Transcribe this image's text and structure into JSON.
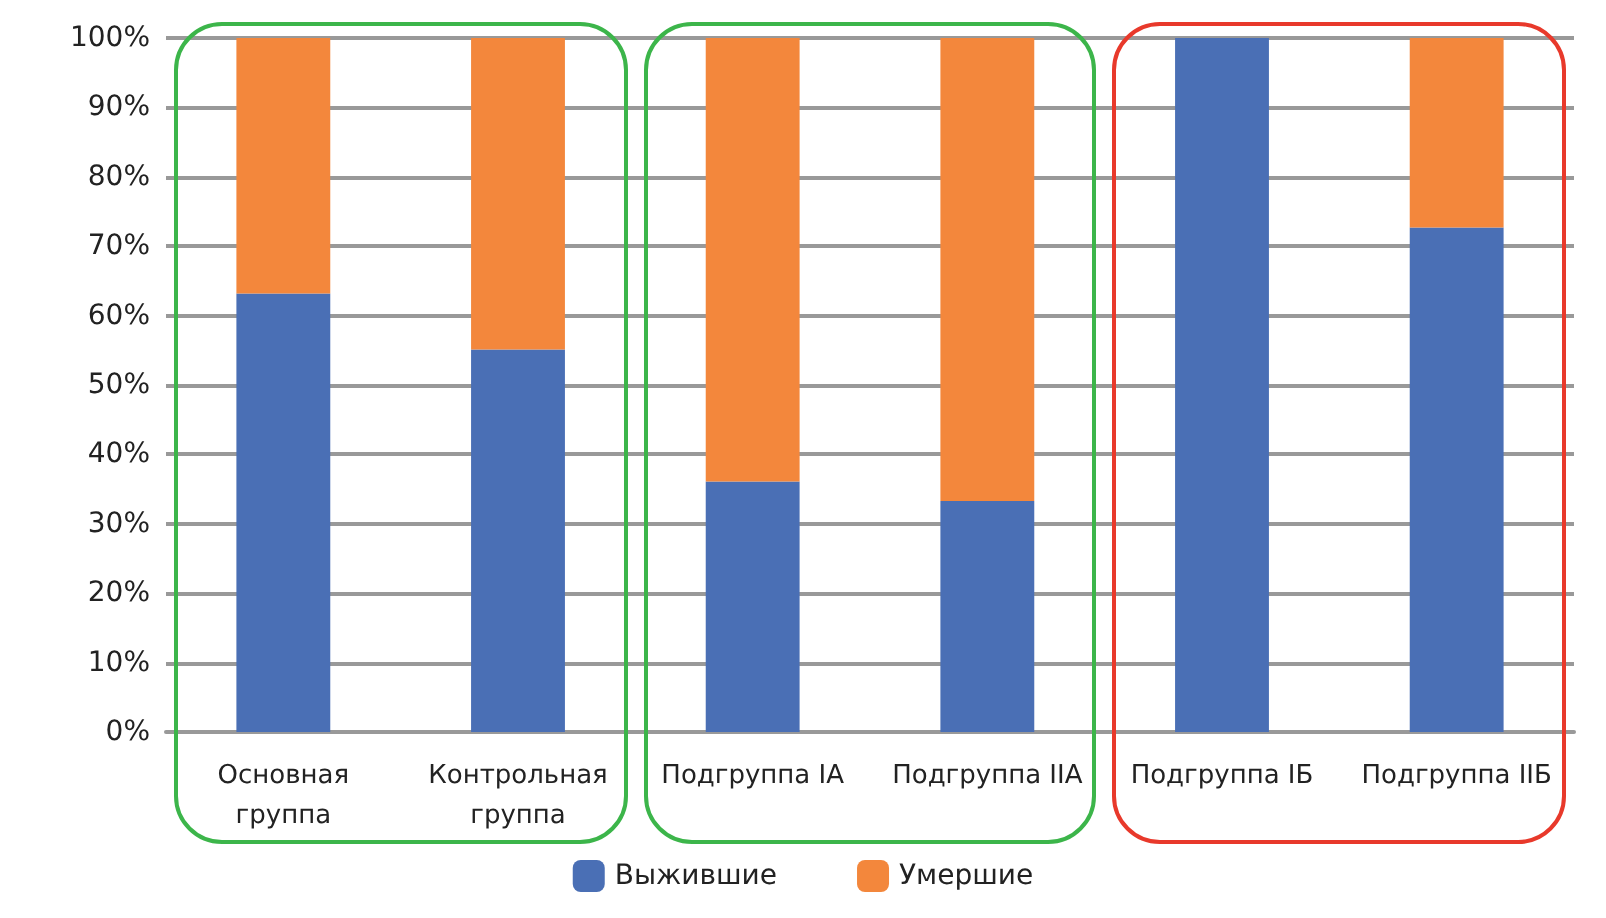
{
  "chart_data": {
    "type": "bar",
    "stacked": true,
    "categories": [
      "Основная группа",
      "Контрольная группа",
      "Подгруппа IA",
      "Подгруппа IIA",
      "Подгруппа IБ",
      "Подгруппа IIБ"
    ],
    "series": [
      {
        "name": "Выжившие",
        "color": "#4a6fb5",
        "values": [
          63.2,
          55.1,
          36.1,
          33.3,
          100,
          72.7
        ]
      },
      {
        "name": "Умершие",
        "color": "#f3873c",
        "values": [
          36.8,
          44.9,
          63.9,
          66.7,
          0,
          27.3
        ]
      }
    ],
    "ylim": [
      0,
      100
    ],
    "yticks": [
      {
        "value": 0,
        "label": "0%"
      },
      {
        "value": 10,
        "label": "10%"
      },
      {
        "value": 20,
        "label": "20%"
      },
      {
        "value": 30,
        "label": "30%"
      },
      {
        "value": 40,
        "label": "40%"
      },
      {
        "value": 50,
        "label": "50%"
      },
      {
        "value": 60,
        "label": "60%"
      },
      {
        "value": 70,
        "label": "70%"
      },
      {
        "value": 80,
        "label": "80%"
      },
      {
        "value": 90,
        "label": "90%"
      },
      {
        "value": 100,
        "label": "100%"
      }
    ],
    "grid": "y",
    "legend": "bottom"
  }
}
